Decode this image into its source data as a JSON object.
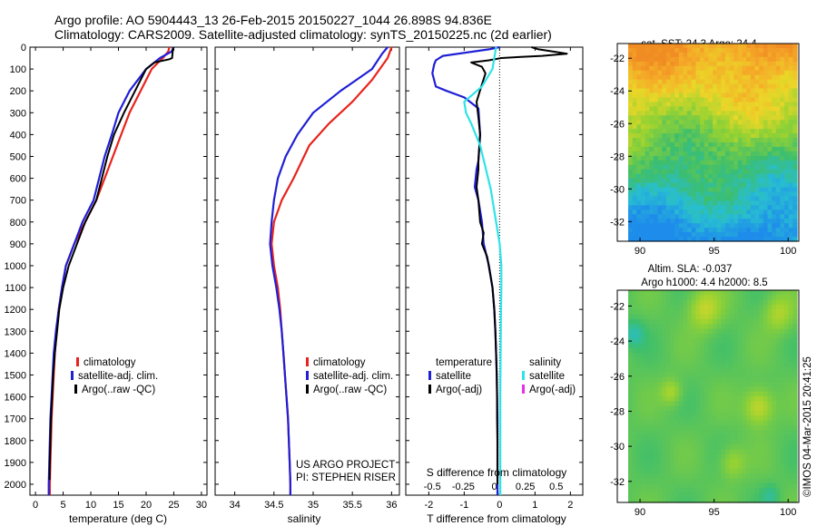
{
  "title_line1": "Argo profile: AO 5904443_13 26-Feb-2015 20150227_1044 26.898S 94.836E",
  "title_line2": "Climatology: CARS2009. Satellite-adjusted climatology: synTS_20150225.nc (2d earlier)",
  "credit": "©IMOS 04-Mar-2015 20:41:25",
  "project_line1": "US ARGO PROJECT",
  "project_line2": "PI: STEPHEN RISER",
  "colors": {
    "climatology": "#e8231c",
    "satellite": "#1f1fd6",
    "argo": "#000000",
    "sat_salt": "#2ee3e8",
    "argo_salt": "#e830e8"
  },
  "chart_data": [
    {
      "type": "line",
      "id": "temperature",
      "xlabel": "temperature (deg C)",
      "ylim": [
        2050,
        0
      ],
      "xlim": [
        -1,
        31
      ],
      "xticks": [
        0,
        5,
        10,
        15,
        20,
        25,
        30
      ],
      "yticks": [
        0,
        100,
        200,
        300,
        400,
        500,
        600,
        700,
        800,
        900,
        1000,
        1100,
        1200,
        1300,
        1400,
        1500,
        1600,
        1700,
        1800,
        1900,
        2000
      ],
      "legend": [
        "climatology",
        "satellite-adj. clim.",
        "Argo(..raw -QC)"
      ],
      "series": [
        {
          "name": "climatology",
          "color": "#e8231c",
          "points": [
            [
              24.2,
              0
            ],
            [
              24,
              20
            ],
            [
              23,
              50
            ],
            [
              21,
              100
            ],
            [
              19,
              200
            ],
            [
              17,
              300
            ],
            [
              15.5,
              400
            ],
            [
              14,
              500
            ],
            [
              12.5,
              600
            ],
            [
              11,
              700
            ],
            [
              9,
              800
            ],
            [
              7,
              900
            ],
            [
              5.5,
              1000
            ],
            [
              4.8,
              1100
            ],
            [
              4.2,
              1200
            ],
            [
              3.8,
              1300
            ],
            [
              3.5,
              1400
            ],
            [
              3.3,
              1500
            ],
            [
              3.1,
              1600
            ],
            [
              2.9,
              1700
            ],
            [
              2.8,
              1800
            ],
            [
              2.7,
              1900
            ],
            [
              2.6,
              2000
            ],
            [
              2.6,
              2050
            ]
          ]
        },
        {
          "name": "satellite-adj. clim.",
          "color": "#1f1fd6",
          "points": [
            [
              25,
              0
            ],
            [
              24.6,
              20
            ],
            [
              22.5,
              50
            ],
            [
              20,
              100
            ],
            [
              17,
              200
            ],
            [
              15,
              300
            ],
            [
              13.8,
              400
            ],
            [
              12.5,
              500
            ],
            [
              11.5,
              600
            ],
            [
              10.5,
              700
            ],
            [
              8.5,
              800
            ],
            [
              7,
              900
            ],
            [
              5.5,
              1000
            ],
            [
              4.8,
              1100
            ],
            [
              4.2,
              1200
            ],
            [
              3.7,
              1300
            ],
            [
              3.3,
              1400
            ],
            [
              3.1,
              1500
            ],
            [
              2.9,
              1600
            ],
            [
              2.7,
              1700
            ],
            [
              2.6,
              1800
            ],
            [
              2.5,
              1900
            ],
            [
              2.4,
              2000
            ],
            [
              2.4,
              2050
            ]
          ]
        },
        {
          "name": "Argo(..raw -QC)",
          "color": "#000000",
          "points": [
            [
              24.9,
              0
            ],
            [
              24.8,
              20
            ],
            [
              24.7,
              50
            ],
            [
              24.2,
              55
            ],
            [
              21.5,
              70
            ],
            [
              20,
              100
            ],
            [
              18,
              200
            ],
            [
              16,
              300
            ],
            [
              14.2,
              400
            ],
            [
              13,
              500
            ],
            [
              12,
              600
            ],
            [
              11,
              700
            ],
            [
              9,
              800
            ],
            [
              7.5,
              900
            ],
            [
              6,
              1000
            ],
            [
              5,
              1100
            ],
            [
              4.3,
              1200
            ],
            [
              3.9,
              1300
            ],
            [
              3.5,
              1400
            ],
            [
              3.2,
              1500
            ],
            [
              3,
              1600
            ],
            [
              2.8,
              1700
            ],
            [
              2.7,
              1800
            ],
            [
              2.6,
              1900
            ],
            [
              2.55,
              1980
            ]
          ]
        }
      ]
    },
    {
      "type": "line",
      "id": "salinity",
      "xlabel": "salinity",
      "ylim": [
        2050,
        0
      ],
      "xlim": [
        33.75,
        36.1
      ],
      "xticks": [
        34,
        34.5,
        35,
        35.5,
        36
      ],
      "xtick_labels": [
        "34",
        "34.5",
        "35",
        "35.5",
        "36"
      ],
      "legend": [
        "climatology",
        "satellite-adj. clim.",
        "Argo(..raw -QC)"
      ],
      "series": [
        {
          "name": "climatology",
          "color": "#e8231c",
          "points": [
            [
              36,
              0
            ],
            [
              35.95,
              50
            ],
            [
              35.75,
              150
            ],
            [
              35.5,
              250
            ],
            [
              35.2,
              350
            ],
            [
              34.95,
              450
            ],
            [
              34.75,
              600
            ],
            [
              34.6,
              700
            ],
            [
              34.5,
              800
            ],
            [
              34.47,
              900
            ],
            [
              34.5,
              1000
            ],
            [
              34.55,
              1100
            ],
            [
              34.58,
              1200
            ],
            [
              34.6,
              1300
            ],
            [
              34.62,
              1400
            ],
            [
              34.64,
              1500
            ],
            [
              34.66,
              1600
            ],
            [
              34.68,
              1700
            ],
            [
              34.69,
              1800
            ],
            [
              34.7,
              1900
            ],
            [
              34.71,
              2000
            ],
            [
              34.71,
              2050
            ]
          ]
        },
        {
          "name": "satellite-adj. clim.",
          "color": "#1f1fd6",
          "points": [
            [
              35.95,
              0
            ],
            [
              35.88,
              30
            ],
            [
              35.75,
              100
            ],
            [
              35.35,
              200
            ],
            [
              35,
              300
            ],
            [
              34.8,
              400
            ],
            [
              34.65,
              500
            ],
            [
              34.55,
              600
            ],
            [
              34.5,
              700
            ],
            [
              34.47,
              800
            ],
            [
              34.45,
              900
            ],
            [
              34.48,
              1000
            ],
            [
              34.53,
              1100
            ],
            [
              34.57,
              1200
            ],
            [
              34.6,
              1300
            ],
            [
              34.62,
              1400
            ],
            [
              34.64,
              1500
            ],
            [
              34.66,
              1600
            ],
            [
              34.68,
              1700
            ],
            [
              34.69,
              1800
            ],
            [
              34.7,
              1900
            ],
            [
              34.71,
              2000
            ],
            [
              34.71,
              2050
            ]
          ]
        }
      ]
    },
    {
      "type": "line",
      "id": "difference",
      "xlabel": "T difference from climatology",
      "top_xlabel": "S difference from climatology",
      "ylim": [
        2050,
        0
      ],
      "xlim": [
        -2.65,
        2.35
      ],
      "xticks": [
        -2,
        -1,
        0,
        1,
        2
      ],
      "top_xticks": [
        -0.5,
        -0.25,
        0,
        0.25,
        0.5
      ],
      "top_xtick_labels": [
        "-0.5",
        "-0.25",
        "0",
        "0.25",
        "0.5"
      ],
      "legend_headers": [
        "temperature",
        "salinity"
      ],
      "legend": [
        "satellite",
        "Argo(-adj)",
        "satellite",
        "Argo(-adj)"
      ],
      "series": [
        {
          "name": "satellite",
          "color": "#1f1fd6",
          "points": [
            [
              0,
              0
            ],
            [
              -0.3,
              10
            ],
            [
              -1.6,
              40
            ],
            [
              -1.8,
              60
            ],
            [
              -1.85,
              80
            ],
            [
              -1.9,
              120
            ],
            [
              -1.8,
              180
            ],
            [
              -1.5,
              200
            ],
            [
              -1,
              230
            ],
            [
              -0.6,
              280
            ],
            [
              -0.55,
              400
            ],
            [
              -0.6,
              520
            ],
            [
              -0.65,
              560
            ],
            [
              -0.7,
              640
            ],
            [
              -0.6,
              700
            ],
            [
              -0.5,
              800
            ],
            [
              -0.45,
              900
            ],
            [
              -0.3,
              1000
            ],
            [
              -0.2,
              1100
            ],
            [
              -0.15,
              1200
            ],
            [
              -0.12,
              1300
            ],
            [
              -0.1,
              1400
            ],
            [
              -0.08,
              1500
            ],
            [
              -0.07,
              1600
            ],
            [
              -0.06,
              1700
            ],
            [
              -0.06,
              1800
            ],
            [
              -0.06,
              1900
            ],
            [
              -0.06,
              2000
            ],
            [
              -0.06,
              2050
            ]
          ]
        },
        {
          "name": "Argo(-adj)",
          "color": "#000000",
          "points": [
            [
              0.9,
              0
            ],
            [
              1.1,
              10
            ],
            [
              1.5,
              20
            ],
            [
              1.9,
              30
            ],
            [
              1.2,
              40
            ],
            [
              0.6,
              45
            ],
            [
              0.05,
              50
            ],
            [
              -0.3,
              60
            ],
            [
              -0.8,
              70
            ],
            [
              -0.5,
              90
            ],
            [
              -0.4,
              120
            ],
            [
              -0.5,
              170
            ],
            [
              -0.65,
              250
            ],
            [
              -0.6,
              320
            ],
            [
              -0.55,
              400
            ],
            [
              -0.6,
              520
            ],
            [
              -0.6,
              560
            ],
            [
              -0.65,
              640
            ],
            [
              -0.6,
              700
            ],
            [
              -0.55,
              800
            ],
            [
              -0.45,
              850
            ],
            [
              -0.5,
              900
            ],
            [
              -0.35,
              960
            ],
            [
              -0.2,
              1100
            ],
            [
              -0.15,
              1200
            ],
            [
              -0.12,
              1300
            ],
            [
              -0.1,
              1400
            ],
            [
              -0.08,
              1500
            ],
            [
              -0.07,
              1600
            ],
            [
              -0.07,
              1700
            ],
            [
              -0.06,
              1800
            ],
            [
              -0.06,
              1900
            ],
            [
              -0.06,
              2000
            ]
          ]
        },
        {
          "name": "satellite",
          "color": "#2ee3e8",
          "points": [
            [
              -0.1,
              0
            ],
            [
              -0.15,
              50
            ],
            [
              -0.2,
              100
            ],
            [
              -0.5,
              180
            ],
            [
              -1,
              250
            ],
            [
              -0.95,
              300
            ],
            [
              -0.8,
              350
            ],
            [
              -0.55,
              450
            ],
            [
              -0.4,
              550
            ],
            [
              -0.25,
              650
            ],
            [
              -0.1,
              800
            ],
            [
              0,
              900
            ],
            [
              0.05,
              1000
            ],
            [
              0.05,
              1100
            ],
            [
              0.04,
              1200
            ],
            [
              0.03,
              1400
            ],
            [
              0.02,
              1600
            ],
            [
              0.02,
              1800
            ],
            [
              0.02,
              2000
            ],
            [
              0.02,
              2050
            ]
          ]
        }
      ]
    },
    {
      "type": "heatmap",
      "id": "sst_map",
      "title": "sat. SST: 24.3  Argo: 24.4",
      "xlim": [
        89.2,
        100.6
      ],
      "ylim": [
        -33.2,
        -21.1
      ],
      "xticks": [
        90,
        95,
        100
      ],
      "yticks": [
        -22,
        -24,
        -26,
        -28,
        -30,
        -32
      ]
    },
    {
      "type": "heatmap",
      "id": "sla_map",
      "title_line1": "Altim. SLA: -0.037",
      "title_line2": "Argo h1000: 4.4 h2000: 8.5",
      "xlim": [
        89.2,
        100.6
      ],
      "ylim": [
        -33.2,
        -21.1
      ],
      "xticks": [
        90,
        95,
        100
      ],
      "yticks": [
        -22,
        -24,
        -26,
        -28,
        -30,
        -32
      ]
    }
  ]
}
